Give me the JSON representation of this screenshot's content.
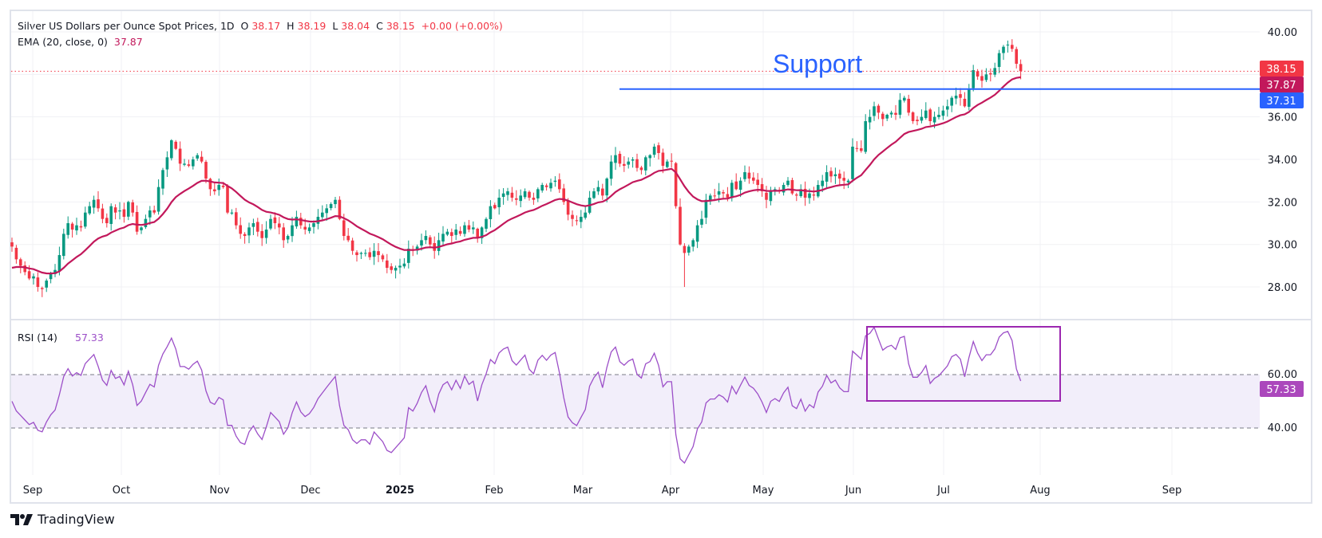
{
  "legend": {
    "title": "Silver US Dollars per Ounce Spot Prices, 1D",
    "open_label": "O",
    "open": "38.17",
    "high_label": "H",
    "high": "38.19",
    "low_label": "L",
    "low": "38.04",
    "close_label": "C",
    "close": "38.15",
    "change": "+0.00 (+0.00%)",
    "ema_label": "EMA (20, close, 0)",
    "ema_value": "37.87",
    "rsi_label": "RSI (14)",
    "rsi_value": "57.33"
  },
  "annotation": {
    "support_text": "Support",
    "support_level": 37.31
  },
  "badges": {
    "last_price": "38.15",
    "ema": "37.87",
    "support": "37.31",
    "rsi": "57.33"
  },
  "brand": "TradingView",
  "colors": {
    "up": "#089981",
    "down": "#f23645",
    "ema": "#c2185b",
    "support": "#2962ff",
    "rsi": "#9c4fc8",
    "box": "#9c27b0"
  },
  "chart_data": {
    "type": "candlestick",
    "title": "Silver US Dollars per Ounce Spot Prices, 1D",
    "price_ticks": [
      "40.00",
      "38.00",
      "36.00",
      "34.00",
      "32.00",
      "30.00",
      "28.00"
    ],
    "price_tick_values": [
      40,
      38,
      36,
      34,
      32,
      30,
      28
    ],
    "rsi_ticks": [
      "60.00",
      "40.00"
    ],
    "rsi_tick_values": [
      60,
      40
    ],
    "rsi_band": [
      40,
      60
    ],
    "time_labels": [
      "Sep",
      "Oct",
      "Nov",
      "Dec",
      "2025",
      "Feb",
      "Mar",
      "Apr",
      "May",
      "Jun",
      "Jul",
      "Aug",
      "Sep"
    ],
    "ylim": [
      27,
      41.5
    ],
    "closes": [
      29.9,
      29.3,
      29.0,
      28.7,
      28.4,
      28.5,
      28.0,
      27.9,
      28.3,
      28.6,
      28.8,
      29.5,
      30.5,
      31.0,
      30.7,
      30.9,
      30.8,
      31.5,
      31.8,
      32.1,
      31.7,
      31.2,
      31.0,
      31.8,
      31.5,
      31.6,
      31.3,
      32.0,
      31.5,
      30.6,
      30.8,
      31.2,
      31.6,
      31.5,
      32.7,
      33.5,
      34.1,
      34.9,
      34.5,
      33.8,
      33.8,
      33.7,
      34.0,
      34.2,
      33.9,
      33.1,
      32.6,
      32.5,
      32.8,
      32.7,
      31.5,
      31.5,
      30.9,
      30.5,
      30.4,
      30.8,
      31.0,
      30.6,
      30.3,
      30.7,
      31.2,
      31.0,
      30.8,
      30.2,
      30.4,
      30.9,
      31.3,
      30.9,
      30.7,
      30.8,
      31.0,
      31.3,
      31.5,
      31.7,
      31.9,
      32.1,
      31.2,
      30.4,
      30.2,
      29.7,
      29.5,
      29.6,
      29.6,
      29.4,
      29.7,
      29.5,
      29.3,
      28.9,
      28.8,
      28.9,
      29.0,
      29.1,
      29.8,
      29.7,
      29.9,
      30.2,
      30.4,
      30.0,
      29.7,
      30.2,
      30.5,
      30.6,
      30.4,
      30.7,
      30.5,
      30.9,
      30.7,
      30.8,
      30.3,
      30.8,
      31.2,
      31.8,
      31.7,
      32.2,
      32.4,
      32.5,
      32.2,
      32.1,
      32.3,
      32.5,
      32.2,
      32.1,
      32.6,
      32.8,
      32.7,
      32.9,
      33.0,
      32.6,
      32.0,
      31.4,
      31.2,
      31.1,
      31.3,
      31.5,
      32.2,
      32.5,
      32.7,
      32.3,
      33.1,
      33.9,
      34.2,
      33.8,
      33.7,
      33.9,
      34.0,
      33.6,
      33.5,
      34.1,
      34.2,
      34.6,
      34.3,
      33.7,
      33.9,
      33.9,
      31.8,
      30.0,
      29.6,
      29.9,
      30.2,
      30.9,
      31.2,
      32.1,
      32.3,
      32.3,
      32.5,
      32.4,
      32.2,
      32.9,
      32.6,
      33.0,
      33.4,
      33.1,
      33.0,
      32.8,
      32.5,
      32.1,
      32.5,
      32.6,
      32.5,
      32.8,
      33.0,
      32.4,
      32.3,
      32.6,
      32.2,
      32.4,
      32.3,
      32.8,
      33.0,
      33.4,
      33.2,
      33.3,
      33.1,
      33.0,
      33.0,
      34.6,
      34.5,
      34.4,
      35.8,
      36.0,
      36.5,
      36.2,
      35.9,
      36.1,
      36.2,
      36.1,
      36.8,
      36.9,
      36.2,
      35.8,
      35.8,
      36.0,
      36.3,
      35.8,
      36.0,
      36.1,
      36.3,
      36.5,
      36.9,
      37.0,
      36.9,
      36.5,
      37.3,
      38.2,
      37.9,
      37.7,
      38.0,
      38.0,
      38.3,
      39.0,
      39.3,
      39.4,
      39.2,
      38.5,
      38.15
    ],
    "wick_extremes": [
      {
        "bar": 156,
        "low": 28.0
      },
      {
        "bar": 37,
        "high": 34.95
      }
    ],
    "ema_period": 20,
    "rsi_period": 14
  }
}
